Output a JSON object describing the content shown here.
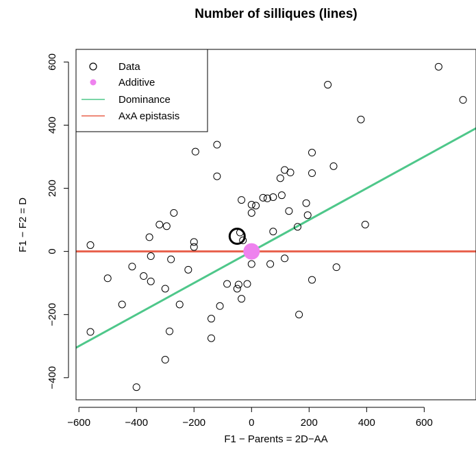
{
  "chart_data": {
    "type": "scatter",
    "title": "Number of silliques (lines)",
    "xlabel": "F1 − Parents = 2D−AA",
    "ylabel": "F1 − F2 = D",
    "xlim": [
      -610,
      780
    ],
    "ylim": [
      -470,
      640
    ],
    "xticks": [
      -600,
      -400,
      -200,
      0,
      200,
      400,
      600
    ],
    "yticks": [
      -400,
      -200,
      0,
      200,
      400,
      600
    ],
    "xtick_labels": [
      "−600",
      "−400",
      "−200",
      "0",
      "200",
      "400",
      "600"
    ],
    "ytick_labels": [
      "−400",
      "−200",
      "0",
      "200",
      "400",
      "600"
    ],
    "legend": {
      "position": "top-left",
      "entries": [
        {
          "label": "Data",
          "symbol": "open-circle",
          "color": "#000000"
        },
        {
          "label": "Additive",
          "symbol": "filled-circle",
          "color": "#ee82ee"
        },
        {
          "label": "Dominance",
          "symbol": "line",
          "color": "#4ec78a"
        },
        {
          "label": "AxA epistasis",
          "symbol": "line",
          "color": "#e8604c"
        }
      ]
    },
    "series": [
      {
        "name": "Data",
        "color": "#000000",
        "points": [
          [
            -560,
            20
          ],
          [
            -560,
            -255
          ],
          [
            -500,
            -85
          ],
          [
            -450,
            -168
          ],
          [
            -415,
            -48
          ],
          [
            -375,
            -78
          ],
          [
            -355,
            45
          ],
          [
            -350,
            -15
          ],
          [
            -350,
            -95
          ],
          [
            -320,
            85
          ],
          [
            -300,
            -118
          ],
          [
            -300,
            -343
          ],
          [
            -295,
            80
          ],
          [
            -285,
            -253
          ],
          [
            -280,
            -25
          ],
          [
            -270,
            122
          ],
          [
            -250,
            -168
          ],
          [
            -220,
            -58
          ],
          [
            -200,
            30
          ],
          [
            -200,
            14
          ],
          [
            -195,
            316
          ],
          [
            -400,
            -430
          ],
          [
            -140,
            -213
          ],
          [
            -140,
            -275
          ],
          [
            -120,
            338
          ],
          [
            -120,
            238
          ],
          [
            -110,
            -173
          ],
          [
            -85,
            -103
          ],
          [
            -50,
            -118
          ],
          [
            -45,
            -105
          ],
          [
            -40,
            60
          ],
          [
            -35,
            163
          ],
          [
            -35,
            -150
          ],
          [
            -30,
            35
          ],
          [
            -15,
            -103
          ],
          [
            0,
            122
          ],
          [
            0,
            148
          ],
          [
            0,
            -40
          ],
          [
            15,
            145
          ],
          [
            40,
            170
          ],
          [
            55,
            168
          ],
          [
            65,
            -40
          ],
          [
            75,
            172
          ],
          [
            75,
            63
          ],
          [
            100,
            232
          ],
          [
            105,
            178
          ],
          [
            115,
            -22
          ],
          [
            115,
            258
          ],
          [
            130,
            128
          ],
          [
            135,
            250
          ],
          [
            160,
            78
          ],
          [
            165,
            -200
          ],
          [
            190,
            153
          ],
          [
            195,
            115
          ],
          [
            210,
            313
          ],
          [
            210,
            248
          ],
          [
            210,
            -90
          ],
          [
            285,
            270
          ],
          [
            265,
            528
          ],
          [
            295,
            -50
          ],
          [
            380,
            418
          ],
          [
            395,
            85
          ],
          [
            650,
            585
          ],
          [
            735,
            480
          ]
        ]
      },
      {
        "name": "Additive",
        "color": "#ee82ee",
        "points": [
          [
            0,
            0
          ]
        ]
      }
    ],
    "highlight_point": [
      -50,
      48
    ],
    "lines": [
      {
        "name": "Dominance",
        "color": "#4ec78a",
        "intercept": 0,
        "slope": 0.5
      },
      {
        "name": "AxA epistasis",
        "color": "#e8604c",
        "intercept": 0,
        "slope": 0
      }
    ]
  }
}
